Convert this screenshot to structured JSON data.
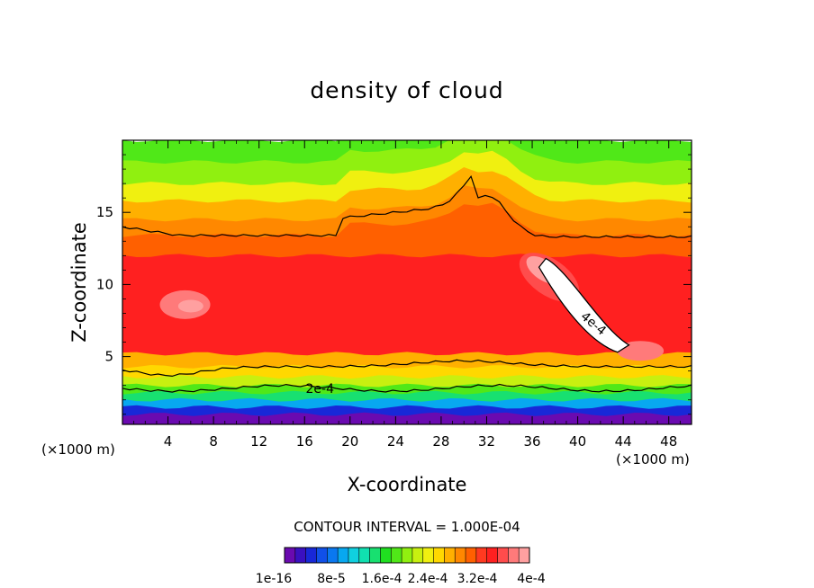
{
  "chart_data": {
    "type": "heatmap",
    "title": "density of cloud",
    "xlabel": "X-coordinate",
    "ylabel": "Z-coordinate",
    "x_unit_label": "(×1000 m)",
    "xlim": [
      0,
      50
    ],
    "ylim": [
      0.3,
      20
    ],
    "x_ticks": [
      4,
      8,
      12,
      16,
      20,
      24,
      28,
      32,
      36,
      40,
      44,
      48
    ],
    "y_ticks": [
      5,
      10,
      15
    ],
    "contour_interval_label": "CONTOUR INTERVAL = 1.000E-04",
    "contour_labels": [
      "2e-4",
      "4e-4"
    ],
    "colorbar": {
      "labels": [
        "1e-16",
        "8e-5",
        "1.6e-4",
        "2.4e-4",
        "3.2e-4",
        "4e-4"
      ],
      "colors": [
        "#6a0ab0",
        "#3a10c0",
        "#1828d8",
        "#1050e8",
        "#0a78f0",
        "#08a8f0",
        "#10d0e0",
        "#10e0b0",
        "#18e070",
        "#20e020",
        "#50e818",
        "#90f010",
        "#c8f010",
        "#f0f010",
        "#ffd800",
        "#ffb000",
        "#ff8800",
        "#ff6000",
        "#ff3a20",
        "#ff2020",
        "#ff4c4c",
        "#ff7a7a",
        "#ffa0a0"
      ]
    },
    "regions": [
      {
        "z_max": 1.0,
        "color": "#6a0ab0"
      },
      {
        "z_max": 1.5,
        "color": "#1828d8"
      },
      {
        "z_max": 2.0,
        "color": "#08a8f0"
      },
      {
        "z_max": 2.5,
        "color": "#18e070"
      },
      {
        "z_max": 3.0,
        "color": "#50e818"
      },
      {
        "z_max": 3.6,
        "color": "#c8f010"
      },
      {
        "z_max": 4.3,
        "color": "#ffd800"
      },
      {
        "z_max": 5.2,
        "color": "#ffb000"
      },
      {
        "z_max": 12.0,
        "color": "#ff2020"
      },
      {
        "z_max": 13.4,
        "color": "#ff6000"
      },
      {
        "z_max": 14.5,
        "color": "#ff8800"
      },
      {
        "z_max": 15.8,
        "color": "#ffb000"
      },
      {
        "z_max": 17.0,
        "color": "#f0f010"
      },
      {
        "z_max": 18.5,
        "color": "#90f010"
      },
      {
        "z_max": 20.0,
        "color": "#50e818"
      }
    ]
  }
}
